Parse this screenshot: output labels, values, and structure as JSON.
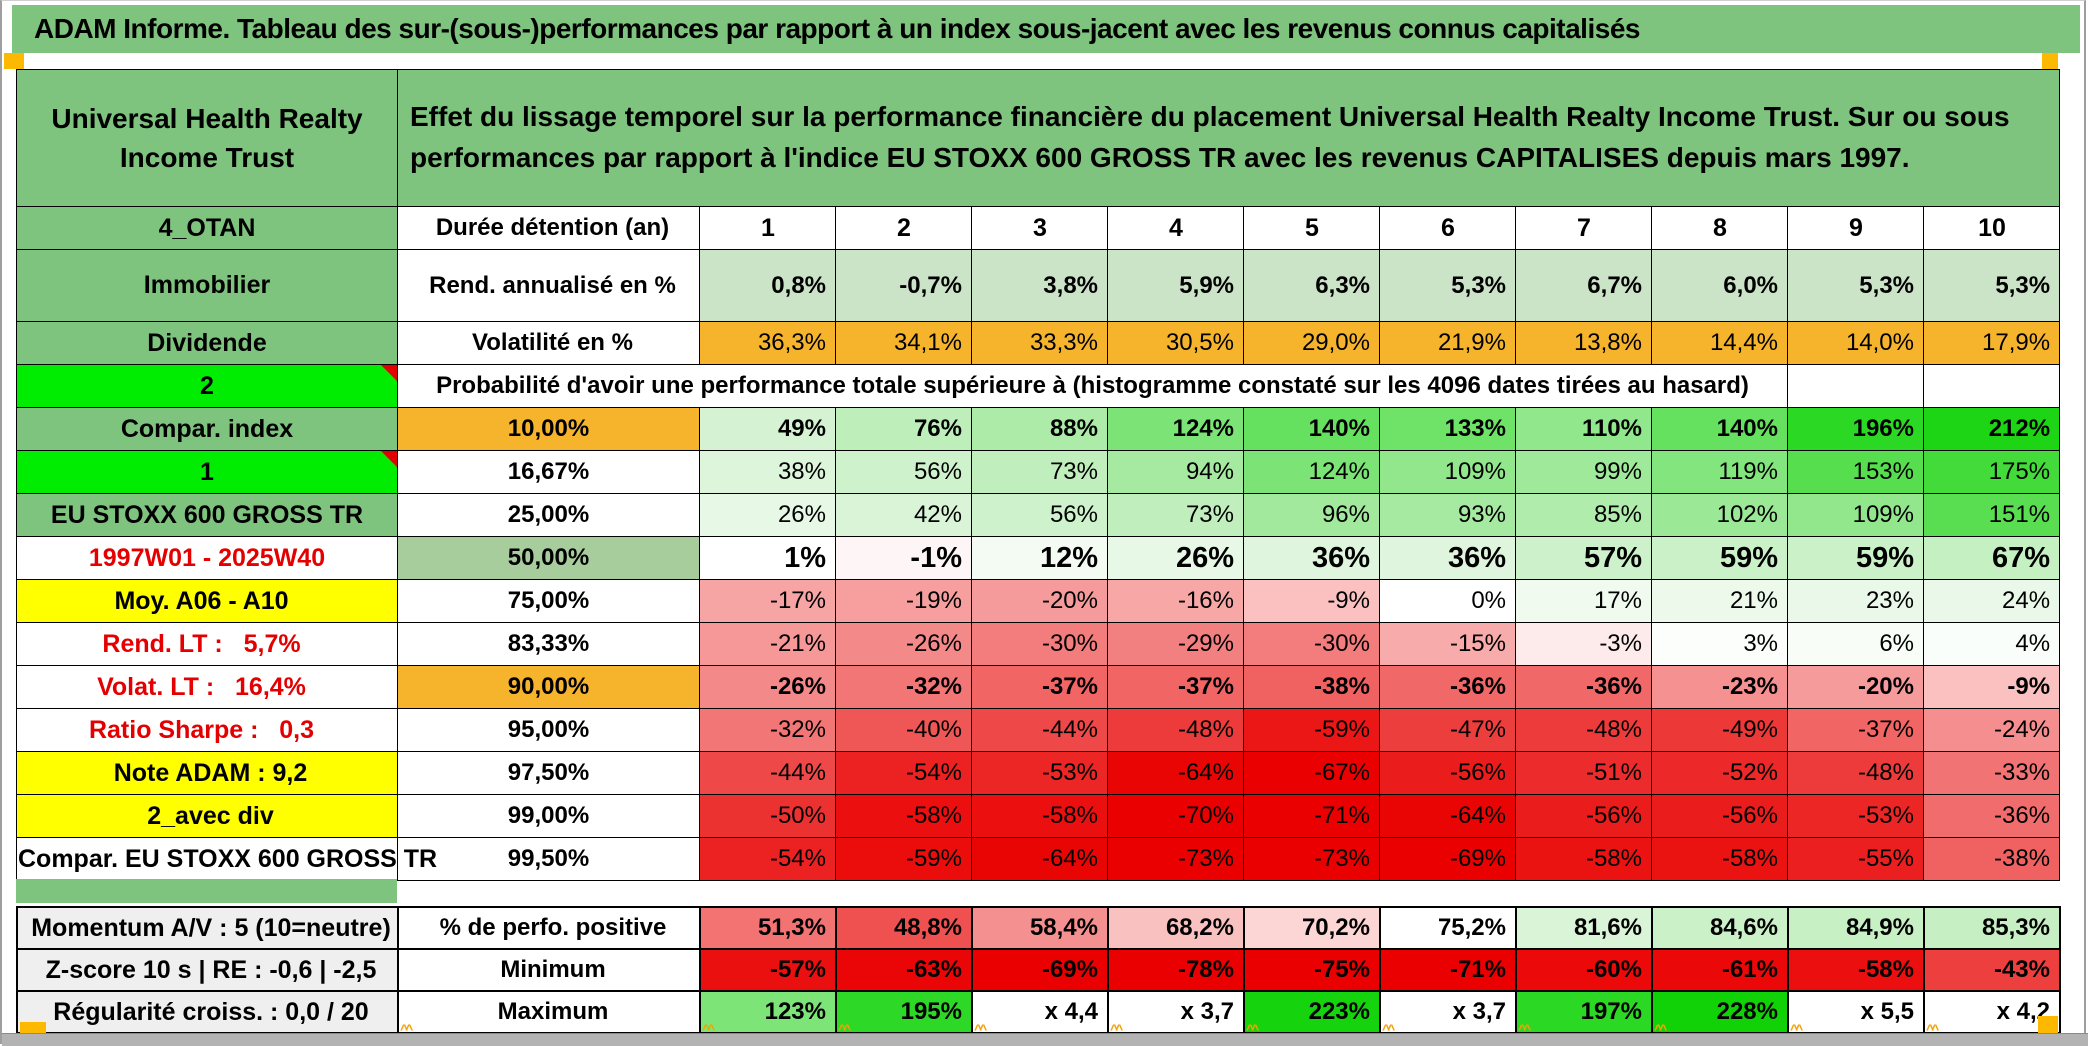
{
  "title": "ADAM Informe. Tableau des sur-(sous-)performances par rapport à un index sous-jacent avec les revenus connus capitalisés",
  "header": {
    "left": "Universal Health Realty Income Trust",
    "right": "Effet du lissage temporel sur la performance financière du placement Universal Health Realty Income Trust. Sur ou sous performances par rapport à l'indice EU STOXX 600 GROSS TR avec les revenus CAPITALISES depuis mars 1997."
  },
  "colors": {
    "green": "#7ec37e",
    "bright_green": "#00ec00",
    "orange": "#f6b42d",
    "yellow": "#ffff00",
    "sage": "#a8cd9d",
    "rend_row": "#cbe3c6",
    "grey_label": "#efefef",
    "red_flag": "#e40000",
    "marker_orange": "#fcb900"
  },
  "table": {
    "rows": [
      {
        "label": {
          "t": "4_OTAN",
          "s": "ls-green"
        },
        "param": {
          "t": "Durée détention (an)",
          "s": "ps-left"
        },
        "align": "ctr",
        "bold": true,
        "cells": [
          "1",
          "2",
          "3",
          "4",
          "5",
          "6",
          "7",
          "8",
          "9",
          "10"
        ],
        "bgs": [
          "#ffffff",
          "#ffffff",
          "#ffffff",
          "#ffffff",
          "#ffffff",
          "#ffffff",
          "#ffffff",
          "#ffffff",
          "#ffffff",
          "#ffffff"
        ]
      },
      {
        "label": {
          "t": "Immobilier",
          "s": "ls-green"
        },
        "param": {
          "t": "Rend. annualisé en %",
          "s": "ps-left"
        },
        "tall": true,
        "bold": true,
        "cells": [
          "0,8%",
          "-0,7%",
          "3,8%",
          "5,9%",
          "6,3%",
          "5,3%",
          "6,7%",
          "6,0%",
          "5,3%",
          "5,3%"
        ],
        "bgs": [
          "#cbe3c6",
          "#cbe3c6",
          "#cbe3c6",
          "#cbe3c6",
          "#cbe3c6",
          "#cbe3c6",
          "#cbe3c6",
          "#cbe3c6",
          "#cbe3c6",
          "#cbe3c6"
        ]
      },
      {
        "label": {
          "t": "Dividende",
          "s": "ls-green"
        },
        "param": {
          "t": "Volatilité en %",
          "s": "ps-left"
        },
        "bold": false,
        "cells": [
          "36,3%",
          "34,1%",
          "33,3%",
          "30,5%",
          "29,0%",
          "21,9%",
          "13,8%",
          "14,4%",
          "14,0%",
          "17,9%"
        ],
        "bgs": [
          "#f6b42d",
          "#f6b42d",
          "#f6b42d",
          "#f6b42d",
          "#f6b42d",
          "#f6b42d",
          "#f6b42d",
          "#f6b42d",
          "#f6b42d",
          "#f6b42d"
        ]
      },
      {
        "label": {
          "t": "2",
          "s": "ls-bright",
          "corner": true
        },
        "merged": "Probabilité d'avoir une performance totale supérieure à (histogramme constaté sur les 4096 dates tirées au hasard)"
      },
      {
        "label": {
          "t": "Compar. index",
          "s": "ls-green"
        },
        "param": {
          "t": "10,00%",
          "s": "ps-orange"
        },
        "bold": true,
        "cells": [
          "49%",
          "76%",
          "88%",
          "124%",
          "140%",
          "133%",
          "110%",
          "140%",
          "196%",
          "212%"
        ],
        "bgs": [
          "#d5f3d3",
          "#beefbb",
          "#aceba8",
          "#7ce476",
          "#66e05f",
          "#6fe268",
          "#91e78c",
          "#66e05f",
          "#2bd824",
          "#1dd515"
        ]
      },
      {
        "label": {
          "t": "1",
          "s": "ls-bright",
          "corner": true
        },
        "param": {
          "t": "16,67%",
          "s": ""
        },
        "bold": false,
        "cells": [
          "38%",
          "56%",
          "73%",
          "94%",
          "124%",
          "109%",
          "99%",
          "119%",
          "153%",
          "175%"
        ],
        "bgs": [
          "#ddf5db",
          "#cef2cb",
          "#c0efbd",
          "#a5eaa0",
          "#7ce476",
          "#92e78d",
          "#9fe99a",
          "#83e57d",
          "#56de4e",
          "#42db39"
        ]
      },
      {
        "label": {
          "t": "EU STOXX 600 GROSS TR",
          "s": "ls-green-sm"
        },
        "param": {
          "t": "25,00%",
          "s": ""
        },
        "bold": false,
        "cells": [
          "26%",
          "42%",
          "56%",
          "73%",
          "96%",
          "93%",
          "85%",
          "102%",
          "109%",
          "151%"
        ],
        "bgs": [
          "#e7f8e6",
          "#daf4d8",
          "#cef2cb",
          "#c0efbd",
          "#a2e99d",
          "#a6eaa1",
          "#b0ecac",
          "#9be896",
          "#92e78d",
          "#58de50"
        ]
      },
      {
        "label": {
          "t": "1997W01 - 2025W40",
          "s": "ls-redc"
        },
        "param": {
          "t": "50,00%",
          "s": "ps-sage"
        },
        "bold": true,
        "big": true,
        "cells": [
          "1%",
          "-1%",
          "12%",
          "26%",
          "36%",
          "36%",
          "57%",
          "59%",
          "59%",
          "67%"
        ],
        "bgs": [
          "#ffffff",
          "#fef6f6",
          "#f3fbf2",
          "#e7f8e6",
          "#dff5dd",
          "#dff5dd",
          "#cdf1ca",
          "#cbf1c8",
          "#cbf1c8",
          "#c5f0c2"
        ]
      },
      {
        "label": {
          "t": "Moy. A06 - A10",
          "s": "ls-yellow-r"
        },
        "param": {
          "t": "75,00%",
          "s": ""
        },
        "bold": false,
        "cells": [
          "-17%",
          "-19%",
          "-20%",
          "-16%",
          "-9%",
          "0%",
          "17%",
          "21%",
          "23%",
          "24%"
        ],
        "bgs": [
          "#f7a4a4",
          "#f79e9e",
          "#f69b9b",
          "#f8a7a7",
          "#fbc1c1",
          "#ffffff",
          "#f0faef",
          "#ecf9eb",
          "#eaf8e9",
          "#e9f8e8"
        ]
      },
      {
        "label": {
          "t": "Rend. LT :   5,7%",
          "s": "ls-red-r"
        },
        "param": {
          "t": "83,33%",
          "s": ""
        },
        "bold": false,
        "cells": [
          "-21%",
          "-26%",
          "-30%",
          "-29%",
          "-30%",
          "-15%",
          "-3%",
          "3%",
          "6%",
          "4%"
        ],
        "bgs": [
          "#f69898",
          "#f48989",
          "#f37d7d",
          "#f38080",
          "#f37d7d",
          "#f8abab",
          "#fdeaea",
          "#fbfefb",
          "#f9fdf8",
          "#fafefa"
        ]
      },
      {
        "label": {
          "t": "Volat. LT :   16,4%",
          "s": "ls-red-r"
        },
        "param": {
          "t": "90,00%",
          "s": "ps-orange"
        },
        "bold": true,
        "cells": [
          "-26%",
          "-32%",
          "-37%",
          "-37%",
          "-38%",
          "-36%",
          "-36%",
          "-23%",
          "-20%",
          "-9%"
        ],
        "bgs": [
          "#f48989",
          "#f27676",
          "#f16565",
          "#f16565",
          "#f06262",
          "#f16868",
          "#f16868",
          "#f59191",
          "#f69b9b",
          "#fbc1c1"
        ]
      },
      {
        "label": {
          "t": "Ratio Sharpe :   0,3",
          "s": "ls-red-r"
        },
        "param": {
          "t": "95,00%",
          "s": ""
        },
        "bold": false,
        "cells": [
          "-32%",
          "-40%",
          "-44%",
          "-48%",
          "-59%",
          "-47%",
          "-48%",
          "-49%",
          "-37%",
          "-24%"
        ],
        "bgs": [
          "#f27676",
          "#ef5656",
          "#ee4848",
          "#ed3b3b",
          "#eb1616",
          "#ed3e3e",
          "#ed3b3b",
          "#ed3838",
          "#f16565",
          "#f58e8e"
        ]
      },
      {
        "label": {
          "t": "Note ADAM : 9,2",
          "s": "ls-yellow-l"
        },
        "param": {
          "t": "97,50%",
          "s": ""
        },
        "bold": false,
        "cells": [
          "-44%",
          "-54%",
          "-53%",
          "-64%",
          "-67%",
          "-56%",
          "-51%",
          "-52%",
          "-48%",
          "-33%"
        ],
        "bgs": [
          "#ee4848",
          "#ec2121",
          "#ec2525",
          "#ea0505",
          "#ea0000",
          "#eb1c1c",
          "#ec2c2c",
          "#ec2828",
          "#ed3b3b",
          "#f27373"
        ]
      },
      {
        "label": {
          "t": "2_avec div",
          "s": "ls-yellow-l"
        },
        "param": {
          "t": "99,00%",
          "s": ""
        },
        "bold": false,
        "cells": [
          "-50%",
          "-58%",
          "-58%",
          "-70%",
          "-71%",
          "-64%",
          "-56%",
          "-56%",
          "-53%",
          "-36%"
        ],
        "bgs": [
          "#ec3131",
          "#eb0f0f",
          "#eb0f0f",
          "#ea0000",
          "#ea0000",
          "#ea0505",
          "#eb1c1c",
          "#eb1c1c",
          "#ec2525",
          "#f16c6c"
        ]
      },
      {
        "label": {
          "t": "Compar. EU STOXX 600 GROSS TR",
          "s": "ls-white-sm"
        },
        "param": {
          "t": "99,50%",
          "s": ""
        },
        "bold": false,
        "cells": [
          "-54%",
          "-59%",
          "-64%",
          "-73%",
          "-73%",
          "-69%",
          "-58%",
          "-58%",
          "-55%",
          "-38%"
        ],
        "bgs": [
          "#ec2121",
          "#eb0c0c",
          "#ea0505",
          "#ea0000",
          "#ea0000",
          "#ea0000",
          "#eb1212",
          "#eb1212",
          "#eb1f1f",
          "#f06262"
        ]
      }
    ],
    "bottom_rows": [
      {
        "label": {
          "t": "Momentum A/V : 5 (10=neutre)",
          "s": "ls-grey"
        },
        "param": {
          "t": "% de perfo. positive",
          "s": "ps-left"
        },
        "bold": true,
        "cells": [
          "51,3%",
          "48,8%",
          "58,4%",
          "68,2%",
          "70,2%",
          "75,2%",
          "81,6%",
          "84,6%",
          "84,9%",
          "85,3%"
        ],
        "bgs": [
          "#f37373",
          "#ef5151",
          "#f59090",
          "#fac1c1",
          "#fcd5d5",
          "#ffffff",
          "#d9f4d7",
          "#caf1c7",
          "#c8f0c5",
          "#c6f0c3"
        ]
      },
      {
        "label": {
          "t": "Z-score 10 s | RE : -0,6 | -2,5",
          "s": "ls-grey"
        },
        "param": {
          "t": "Minimum",
          "s": "ps-left"
        },
        "bold": true,
        "cells": [
          "-57%",
          "-63%",
          "-69%",
          "-78%",
          "-75%",
          "-71%",
          "-60%",
          "-61%",
          "-58%",
          "-43%"
        ],
        "bgs": [
          "#eb1010",
          "#ea0606",
          "#ea0000",
          "#ea0000",
          "#ea0000",
          "#ea0000",
          "#eb0909",
          "#eb0808",
          "#eb0f0f",
          "#ee3f3f"
        ]
      },
      {
        "label": {
          "t": "Régularité croiss. : 0,0 / 20",
          "s": "ls-grey"
        },
        "param": {
          "t": "Maximum",
          "s": "ps-left"
        },
        "bold": true,
        "cells": [
          "123%",
          "195%",
          "x 4,4",
          "x 3,7",
          "223%",
          "x 3,7",
          "197%",
          "228%",
          "x 5,5",
          "x 4,2"
        ],
        "bgs": [
          "#7de477",
          "#2dd826",
          "#ffffff",
          "#ffffff",
          "#15d30c",
          "#ffffff",
          "#2bd824",
          "#10d207",
          "#ffffff",
          "#ffffff"
        ]
      }
    ]
  }
}
